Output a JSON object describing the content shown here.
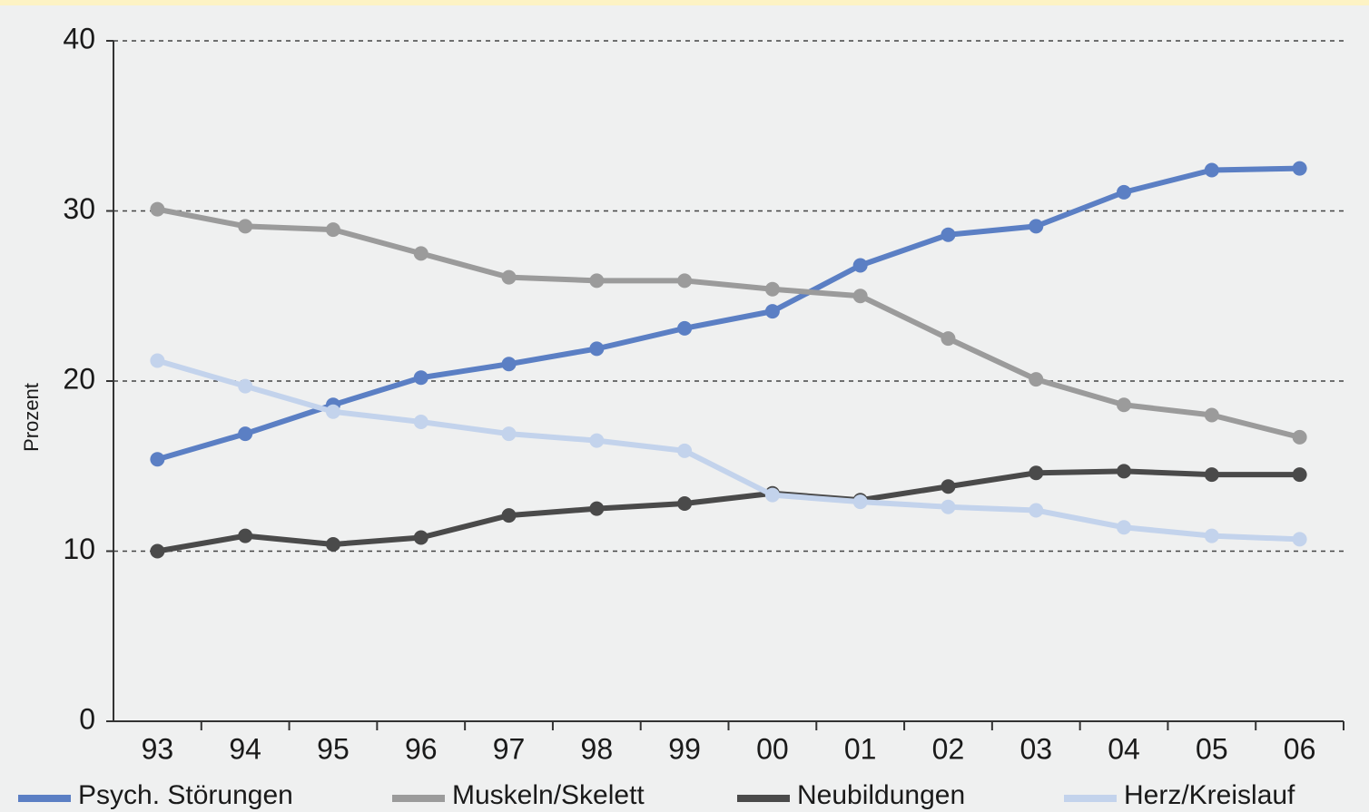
{
  "chart_data": {
    "type": "line",
    "y_label": "Prozent",
    "categories": [
      "93",
      "94",
      "95",
      "96",
      "97",
      "98",
      "99",
      "00",
      "01",
      "02",
      "03",
      "04",
      "05",
      "06"
    ],
    "ylim": [
      0,
      40
    ],
    "yticks": [
      0,
      10,
      20,
      30,
      40
    ],
    "grid": true,
    "series": [
      {
        "name": "Psych. Störungen",
        "color": "#5b7fc4",
        "values": [
          15.4,
          16.9,
          18.6,
          20.2,
          21.0,
          21.9,
          23.1,
          24.1,
          26.8,
          28.6,
          29.1,
          31.1,
          32.4,
          32.5
        ]
      },
      {
        "name": "Muskeln/Skelett",
        "color": "#9b9b9b",
        "values": [
          30.1,
          29.1,
          28.9,
          27.5,
          26.1,
          25.9,
          25.9,
          25.4,
          25.0,
          22.5,
          20.1,
          18.6,
          18.0,
          16.7
        ]
      },
      {
        "name": "Neubildungen",
        "color": "#4a4a4a",
        "values": [
          10.0,
          10.9,
          10.4,
          10.8,
          12.1,
          12.5,
          12.8,
          13.4,
          13.0,
          13.8,
          14.6,
          14.7,
          14.5,
          14.5
        ]
      },
      {
        "name": "Herz/Kreislauf",
        "color": "#c3d3ec",
        "values": [
          21.2,
          19.7,
          18.2,
          17.6,
          16.9,
          16.5,
          15.9,
          13.3,
          12.9,
          12.6,
          12.4,
          11.4,
          10.9,
          10.7
        ]
      }
    ]
  }
}
